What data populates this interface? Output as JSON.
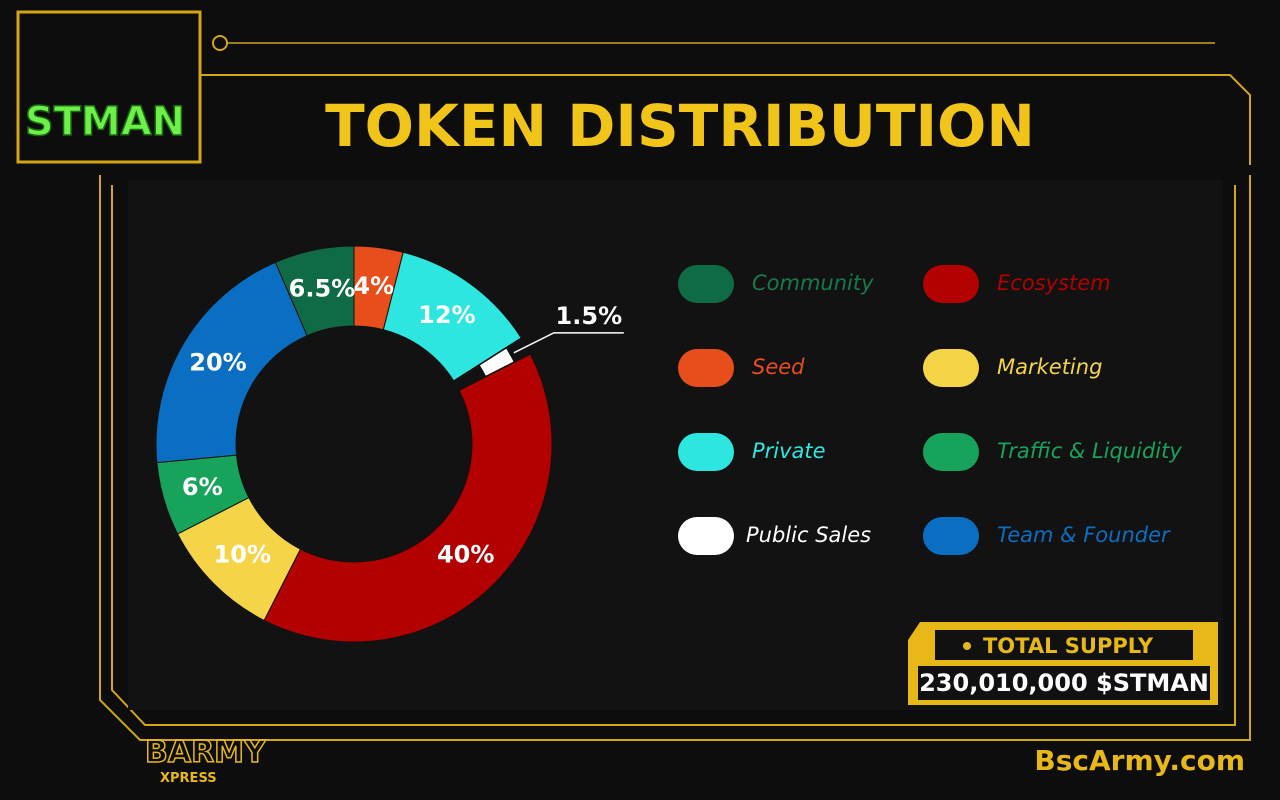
{
  "brand": "STMAN",
  "chart_data": {
    "type": "pie",
    "title": "TOKEN DISTRIBUTION",
    "categories": [
      "Seed",
      "Private",
      "Public Sales",
      "Ecosystem",
      "Marketing",
      "Traffic & Liquidity",
      "Team & Founder",
      "Community"
    ],
    "values": [
      4,
      12,
      1.5,
      40,
      10,
      6,
      20,
      6.5
    ],
    "value_labels": [
      "4%",
      "12%",
      "1.5%",
      "40%",
      "10%",
      "6%",
      "20%",
      "6.5%"
    ],
    "colors": [
      "#e84e1b",
      "#2ee6e0",
      "#ffffff",
      "#b30000",
      "#f5d547",
      "#17a35a",
      "#0a6fc2",
      "#0f6b45"
    ],
    "donut": true
  },
  "total_supply": {
    "label": "TOTAL SUPPLY",
    "value": "230,010,000 $STMAN"
  },
  "footer": {
    "left": "BARMY",
    "left_sub": "XPRESS",
    "right": "BscArmy.com"
  }
}
